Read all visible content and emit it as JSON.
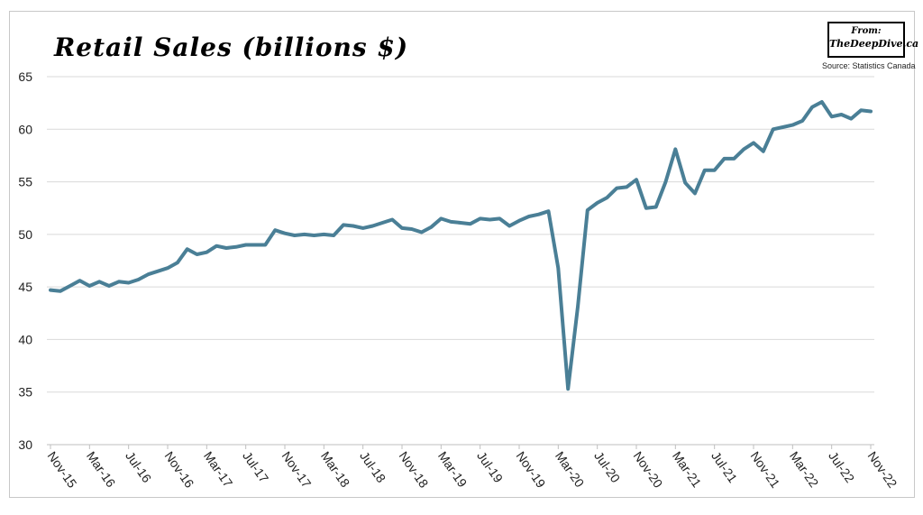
{
  "header": {
    "title": "Retail Sales (billions $)",
    "badge_line1": "From:",
    "badge_line2": "TheDeepDive.ca",
    "source": "Source: Statistics Canada"
  },
  "colors": {
    "line": "#4a7f96",
    "grid": "#d9d9d9",
    "axis": "#bfbfbf"
  },
  "chart_data": {
    "type": "line",
    "title": "Retail Sales (billions $)",
    "xlabel": "",
    "ylabel": "",
    "ylim": [
      30,
      65
    ],
    "yticks": [
      30,
      35,
      40,
      45,
      50,
      55,
      60,
      65
    ],
    "grid": "horizontal",
    "x_tick_labels": [
      "Nov-15",
      "Mar-16",
      "Jul-16",
      "Nov-16",
      "Mar-17",
      "Jul-17",
      "Nov-17",
      "Mar-18",
      "Jul-18",
      "Nov-18",
      "Mar-19",
      "Jul-19",
      "Nov-19",
      "Mar-20",
      "Jul-20",
      "Nov-20",
      "Mar-21",
      "Jul-21",
      "Nov-21",
      "Mar-22",
      "Jul-22",
      "Nov-22"
    ],
    "x": [
      "Nov-15",
      "Dec-15",
      "Jan-16",
      "Feb-16",
      "Mar-16",
      "Apr-16",
      "May-16",
      "Jun-16",
      "Jul-16",
      "Aug-16",
      "Sep-16",
      "Oct-16",
      "Nov-16",
      "Dec-16",
      "Jan-17",
      "Feb-17",
      "Mar-17",
      "Apr-17",
      "May-17",
      "Jun-17",
      "Jul-17",
      "Aug-17",
      "Sep-17",
      "Oct-17",
      "Nov-17",
      "Dec-17",
      "Jan-18",
      "Feb-18",
      "Mar-18",
      "Apr-18",
      "May-18",
      "Jun-18",
      "Jul-18",
      "Aug-18",
      "Sep-18",
      "Oct-18",
      "Nov-18",
      "Dec-18",
      "Jan-19",
      "Feb-19",
      "Mar-19",
      "Apr-19",
      "May-19",
      "Jun-19",
      "Jul-19",
      "Aug-19",
      "Sep-19",
      "Oct-19",
      "Nov-19",
      "Dec-19",
      "Jan-20",
      "Feb-20",
      "Mar-20",
      "Apr-20",
      "May-20",
      "Jun-20",
      "Jul-20",
      "Aug-20",
      "Sep-20",
      "Oct-20",
      "Nov-20",
      "Dec-20",
      "Jan-21",
      "Feb-21",
      "Mar-21",
      "Apr-21",
      "May-21",
      "Jun-21",
      "Jul-21",
      "Aug-21",
      "Sep-21",
      "Oct-21",
      "Nov-21",
      "Dec-21",
      "Jan-22",
      "Feb-22",
      "Mar-22",
      "Apr-22",
      "May-22",
      "Jun-22",
      "Jul-22",
      "Aug-22",
      "Sep-22",
      "Oct-22",
      "Nov-22"
    ],
    "series": [
      {
        "values": [
          44.7,
          44.6,
          45.1,
          45.6,
          45.1,
          45.5,
          45.1,
          45.5,
          45.4,
          45.7,
          46.2,
          46.5,
          46.8,
          47.3,
          48.6,
          48.1,
          48.3,
          48.9,
          48.7,
          48.8,
          49.0,
          49.0,
          49.0,
          50.4,
          50.1,
          49.9,
          50.0,
          49.9,
          50.0,
          49.9,
          50.9,
          50.8,
          50.6,
          50.8,
          51.1,
          51.4,
          50.6,
          50.5,
          50.2,
          50.7,
          51.5,
          51.2,
          51.1,
          51.0,
          51.5,
          51.4,
          51.5,
          50.8,
          51.3,
          51.7,
          51.9,
          52.2,
          46.8,
          35.3,
          43.1,
          52.3,
          53.0,
          53.5,
          54.4,
          54.5,
          55.2,
          52.5,
          52.6,
          55.0,
          58.1,
          54.9,
          53.9,
          56.1,
          56.1,
          57.2,
          57.2,
          58.1,
          58.7,
          57.9,
          60.0,
          60.2,
          60.4,
          60.8,
          62.1,
          62.6,
          61.2,
          61.4,
          61.0,
          61.8,
          61.7
        ]
      }
    ]
  }
}
